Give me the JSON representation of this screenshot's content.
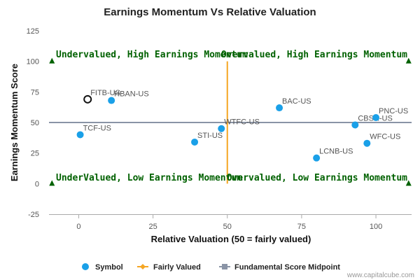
{
  "chart_data": {
    "type": "scatter",
    "title": "Earnings Momentum Vs Relative Valuation",
    "xlabel": "Relative Valuation (50 = fairly valued)",
    "ylabel": "Earnings Momentum Score",
    "xlim": [
      -10,
      112
    ],
    "ylim": [
      -25,
      125
    ],
    "xticks": [
      0,
      25,
      50,
      75,
      100
    ],
    "yticks": [
      -25,
      0,
      25,
      50,
      75,
      100,
      125
    ],
    "grid": false,
    "legend_position": "bottom",
    "series": [
      {
        "name": "Symbol",
        "color": "#1aa0e8",
        "points": [
          {
            "label": "FITB-US",
            "x": 3,
            "y": 69,
            "highlighted": true
          },
          {
            "label": "HBAN-US",
            "x": 11,
            "y": 68
          },
          {
            "label": "TCF-US",
            "x": 0.5,
            "y": 40
          },
          {
            "label": "STI-US",
            "x": 39,
            "y": 34
          },
          {
            "label": "WTFC-US",
            "x": 48,
            "y": 45
          },
          {
            "label": "BAC-US",
            "x": 67.5,
            "y": 62
          },
          {
            "label": "LCNB-US",
            "x": 80,
            "y": 21
          },
          {
            "label": "CBSH-US",
            "x": 93,
            "y": 48
          },
          {
            "label": "PNC-US",
            "x": 100,
            "y": 54
          },
          {
            "label": "WFC-US",
            "x": 97,
            "y": 33
          }
        ]
      },
      {
        "name": "Fairly Valued",
        "color": "#f5a623",
        "points": [
          {
            "x": 50,
            "y": 0
          },
          {
            "x": 50,
            "y": 100
          }
        ]
      },
      {
        "name": "Fundamental Score Midpoint",
        "color": "#8a94a6",
        "points": [
          {
            "x": -10,
            "y": 50
          },
          {
            "x": 112,
            "y": 50
          }
        ]
      }
    ],
    "quadrant_labels": {
      "top_left": "Undervalued, High Earnings Momentum",
      "top_right": "Overvalued, High Earnings Momentum",
      "bottom_left": "UnderValued, Low Earnings Momentum",
      "bottom_right": "Overvalued, Low Earnings Momentum"
    },
    "quadrant_marker_color": "#006100"
  },
  "credit": "www.capitalcube.com"
}
